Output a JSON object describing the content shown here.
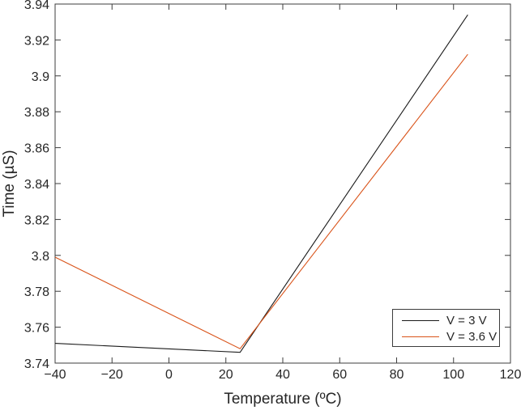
{
  "chart_data": {
    "type": "line",
    "title": "",
    "xlabel": "Temperature (ºC)",
    "ylabel": "Time (µS)",
    "xlim": [
      -40,
      120
    ],
    "ylim": [
      3.74,
      3.94
    ],
    "xtick_values": [
      -40,
      -20,
      0,
      20,
      40,
      60,
      80,
      100,
      120
    ],
    "xtick_labels": [
      "−40",
      "−20",
      "0",
      "20",
      "40",
      "60",
      "80",
      "100",
      "120"
    ],
    "ytick_values": [
      3.74,
      3.76,
      3.78,
      3.8,
      3.82,
      3.84,
      3.86,
      3.88,
      3.9,
      3.92,
      3.94
    ],
    "ytick_labels": [
      "3.74",
      "3.76",
      "3.78",
      "3.8",
      "3.82",
      "3.84",
      "3.86",
      "3.88",
      "3.9",
      "3.92",
      "3.94"
    ],
    "grid": false,
    "box": true,
    "tick_direction": "in",
    "legend_position": "bottom-right",
    "axis_color": "#3c3c3c",
    "text_color": "#262626",
    "background": "#ffffff",
    "series": [
      {
        "name": "V = 3 V",
        "color": "#1a1a1a",
        "x": [
          -40,
          25,
          105
        ],
        "y": [
          3.751,
          3.746,
          3.934
        ]
      },
      {
        "name": "V = 3.6 V",
        "color": "#d95319",
        "x": [
          -40,
          25,
          105
        ],
        "y": [
          3.799,
          3.748,
          3.912
        ]
      }
    ]
  }
}
